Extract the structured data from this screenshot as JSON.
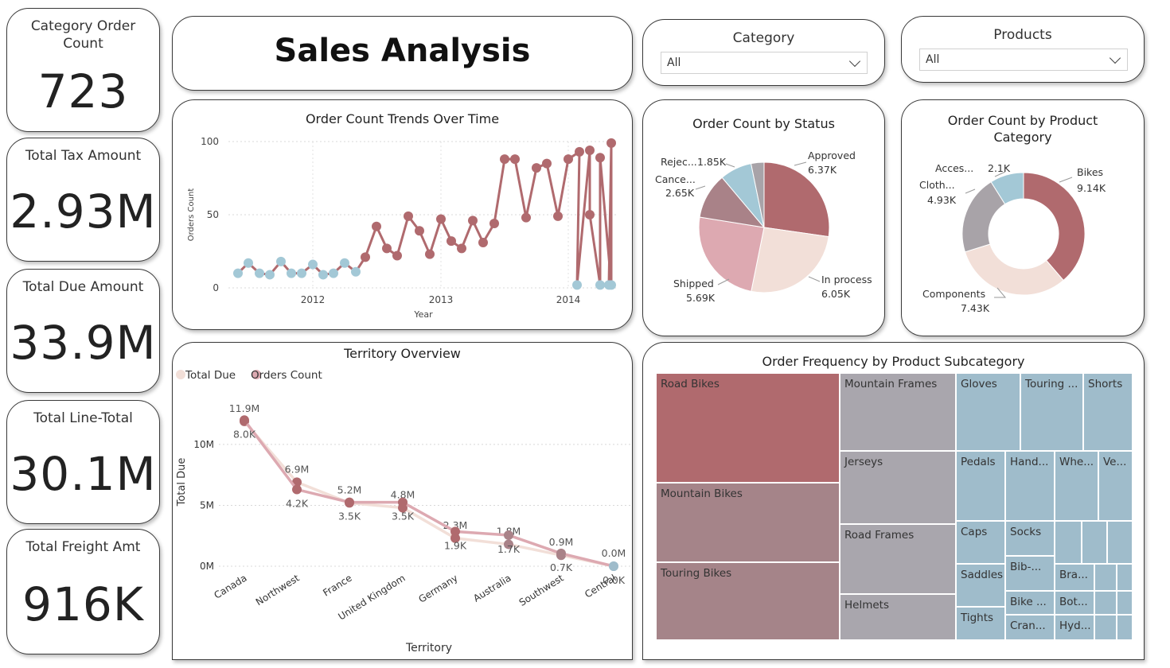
{
  "kpis": [
    {
      "label": "Category Order Count",
      "value": "723"
    },
    {
      "label": "Total Tax Amount",
      "value": "2.93M"
    },
    {
      "label": "Total Due Amount",
      "value": "33.9M"
    },
    {
      "label": "Total Line-Total",
      "value": "30.1M"
    },
    {
      "label": "Total Freight Amt",
      "value": "916K"
    }
  ],
  "title": "Sales Analysis",
  "slicers": [
    {
      "label": "Category",
      "value": "All"
    },
    {
      "label": "Products",
      "value": "All"
    }
  ],
  "colors": {
    "rose": "#b06a6e",
    "mauve": "#a98288",
    "pink": "#dda9b1",
    "cream": "#f2dfd8",
    "blue": "#a3c8d6",
    "gray": "#a8a3a8",
    "grayblue": "#9fbccb"
  },
  "chart_data": [
    {
      "type": "line",
      "title": "Order Count Trends Over Time",
      "xlabel": "Year",
      "ylabel": "Orders Count",
      "ylim": [
        0,
        100
      ],
      "yticks": [
        "0",
        "50",
        "100"
      ],
      "xticks": [
        "2012",
        "2013",
        "2014"
      ],
      "grid": true,
      "series": [
        {
          "values": [
            10,
            17,
            10,
            9,
            18,
            10,
            10,
            16,
            9,
            10,
            17,
            11,
            21,
            42,
            27,
            22,
            49,
            39,
            23,
            47,
            32,
            27,
            46,
            31,
            44,
            88,
            88,
            48,
            82,
            85,
            49,
            88,
            93,
            2,
            94,
            50,
            2,
            89,
            2,
            99,
            2
          ]
        },
        {
          "values": [
            10,
            17,
            10,
            9,
            18,
            10,
            10,
            16,
            9,
            10,
            17,
            11,
            null,
            null,
            null,
            null,
            null,
            null,
            null,
            null,
            null,
            null,
            null,
            null,
            null,
            null,
            null,
            null,
            null,
            null,
            null,
            null,
            null,
            2,
            null,
            null,
            2,
            null,
            2,
            null,
            2
          ]
        }
      ]
    },
    {
      "type": "pie",
      "title": "Order Count by Status",
      "slices": [
        {
          "label": "Approved",
          "value": 6.37,
          "text": "6.37K"
        },
        {
          "label": "In process",
          "value": 6.05,
          "text": "6.05K"
        },
        {
          "label": "Shipped",
          "value": 5.69,
          "text": "5.69K"
        },
        {
          "label": "Cance...",
          "value": 2.65,
          "text": "2.65K"
        },
        {
          "label": "Rejec...",
          "value": 1.85,
          "text": "1.85K"
        },
        {
          "label": "",
          "value": 0.75,
          "text": ""
        }
      ]
    },
    {
      "type": "pie",
      "title": "Order Count by Product Category",
      "donut": true,
      "slices": [
        {
          "label": "Bikes",
          "value": 9.14,
          "text": "9.14K"
        },
        {
          "label": "Components",
          "value": 7.43,
          "text": "7.43K"
        },
        {
          "label": "Cloth...",
          "value": 4.93,
          "text": "4.93K"
        },
        {
          "label": "Acces...",
          "value": 2.1,
          "text": "2.1K"
        }
      ]
    },
    {
      "type": "line",
      "title": "Territory Overview",
      "xlabel": "Territory",
      "ylabel": "Total Due",
      "legend_position": "top-left",
      "ylim": [
        0,
        13
      ],
      "yticks": [
        "0M",
        "5M",
        "10M"
      ],
      "categories": [
        "Canada",
        "Northwest",
        "France",
        "United Kingdom",
        "Germany",
        "Australia",
        "Southwest",
        "Central"
      ],
      "series": [
        {
          "name": "Total Due",
          "values": [
            11.9,
            6.9,
            5.2,
            4.8,
            2.3,
            1.8,
            0.9,
            0.0
          ],
          "labels": [
            "11.9M",
            "6.9M",
            "5.2M",
            "4.8M",
            "2.3M",
            "1.8M",
            "0.9M",
            "0.0M"
          ]
        },
        {
          "name": "Orders Count",
          "values": [
            8.0,
            4.2,
            3.5,
            3.5,
            1.9,
            1.7,
            0.7,
            0.0
          ],
          "labels": [
            "8.0K",
            "4.2K",
            "3.5K",
            "3.5K",
            "1.9K",
            "1.7K",
            "0.7K",
            "0.0K"
          ]
        }
      ]
    },
    {
      "type": "treemap",
      "title": "Order Frequency by Product Subcategory",
      "tiles": [
        "Road Bikes",
        "Mountain Bikes",
        "Touring Bikes",
        "Mountain Frames",
        "Jerseys",
        "Road Frames",
        "Helmets",
        "Gloves",
        "Touring ...",
        "Shorts",
        "Pedals",
        "Hand...",
        "Whe...",
        "Ve...",
        "Caps",
        "Socks",
        "Saddles",
        "Bib-...",
        "Bra...",
        "Bike ...",
        "Bot...",
        "Tights",
        "Cran...",
        "Hyd..."
      ]
    }
  ]
}
